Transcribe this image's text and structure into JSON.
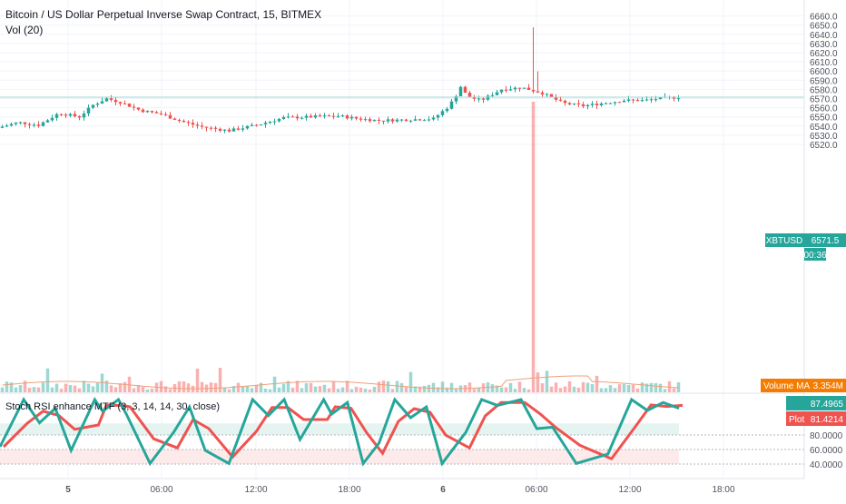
{
  "header": {
    "title": "Bitcoin / US Dollar Perpetual Inverse Swap Contract, 15, BITMEX",
    "vol_label": "Vol (20)"
  },
  "indicator": {
    "label": "Stoch RSI enhance MTF (3, 3, 14, 14, 30, close)"
  },
  "colors": {
    "up": "#26a69a",
    "down": "#ef5350",
    "volume_ma": "#f0a07a",
    "price_line": "#9ed8cf",
    "axis_text": "#50535e",
    "grid": "#f0f3fa",
    "volume_ma_badge": "#f57c00",
    "stoch_k": "#26a69a",
    "stoch_d": "#ef5350"
  },
  "price_axis": {
    "ticks": [
      "6660.0",
      "6650.0",
      "6640.0",
      "6630.0",
      "6620.0",
      "6610.0",
      "6600.0",
      "6590.0",
      "6580.0",
      "6570.0",
      "6560.0",
      "6550.0",
      "6540.0",
      "6530.0",
      "6520.0"
    ]
  },
  "stoch_axis": {
    "ticks": [
      "80.0000",
      "60.0000",
      "40.0000"
    ]
  },
  "time_axis": {
    "ticks": [
      "5",
      "06:00",
      "12:00",
      "18:00",
      "6",
      "06:00",
      "12:00",
      "18:00"
    ]
  },
  "badges": {
    "symbol": "XBTUSD",
    "price": "6571.5",
    "countdown": "00:36",
    "volume_ma_label": "Volume MA",
    "volume_ma_value": "3.354M",
    "stoch_k_value": "87.4965",
    "stoch_d_label": "Plot",
    "stoch_d_value": "81.4214"
  },
  "chart_data": {
    "type": "candlestick",
    "interval": "15",
    "ylim": [
      6515,
      6665
    ],
    "current_price": 6571.5,
    "close_path": [
      [
        0,
        6538
      ],
      [
        3,
        6544
      ],
      [
        6,
        6541
      ],
      [
        9,
        6554
      ],
      [
        12,
        6550
      ],
      [
        14,
        6563
      ],
      [
        16,
        6570
      ],
      [
        18,
        6566
      ],
      [
        21,
        6557
      ],
      [
        24,
        6553
      ],
      [
        27,
        6545
      ],
      [
        30,
        6539
      ],
      [
        34,
        6535
      ],
      [
        38,
        6541
      ],
      [
        42,
        6549
      ],
      [
        46,
        6550
      ],
      [
        50,
        6551
      ],
      [
        53,
        6548
      ],
      [
        56,
        6546
      ],
      [
        60,
        6547
      ],
      [
        64,
        6548
      ],
      [
        66,
        6560
      ],
      [
        67,
        6569
      ],
      [
        68,
        6583
      ],
      [
        69,
        6572
      ],
      [
        71,
        6568
      ],
      [
        74,
        6580
      ],
      [
        77,
        6582
      ],
      [
        80,
        6576
      ],
      [
        83,
        6565
      ],
      [
        86,
        6562
      ],
      [
        89,
        6565
      ],
      [
        92,
        6568
      ],
      [
        95,
        6568
      ],
      [
        97,
        6570
      ],
      [
        100,
        6571.5
      ]
    ],
    "stoch_path": [
      [
        0,
        35
      ],
      [
        3,
        100
      ],
      [
        5,
        68
      ],
      [
        7,
        88
      ],
      [
        9,
        30
      ],
      [
        12,
        100
      ],
      [
        13,
        84
      ],
      [
        15,
        100
      ],
      [
        16,
        80
      ],
      [
        19,
        12
      ],
      [
        22,
        55
      ],
      [
        24,
        90
      ],
      [
        26,
        30
      ],
      [
        29,
        12
      ],
      [
        32,
        100
      ],
      [
        34,
        78
      ],
      [
        36,
        100
      ],
      [
        38,
        45
      ],
      [
        41,
        100
      ],
      [
        42,
        80
      ],
      [
        44,
        96
      ],
      [
        46,
        12
      ],
      [
        48,
        40
      ],
      [
        50,
        100
      ],
      [
        52,
        75
      ],
      [
        54,
        90
      ],
      [
        56,
        12
      ],
      [
        59,
        55
      ],
      [
        61,
        100
      ],
      [
        63,
        92
      ],
      [
        66,
        100
      ],
      [
        68,
        60
      ],
      [
        70,
        62
      ],
      [
        73,
        12
      ],
      [
        77,
        25
      ],
      [
        80,
        100
      ],
      [
        82,
        85
      ],
      [
        84,
        96
      ],
      [
        86,
        88
      ]
    ]
  }
}
